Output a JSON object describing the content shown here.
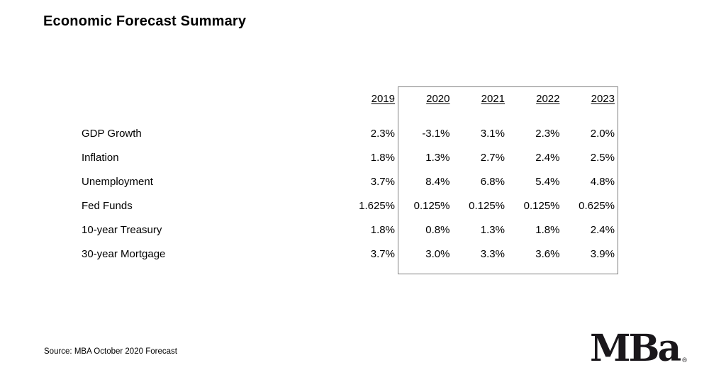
{
  "title": "Economic Forecast Summary",
  "source_note": "Source: MBA October 2020 Forecast",
  "logo": {
    "text": "MBa",
    "registered_mark": "®"
  },
  "colors": {
    "text": "#000000",
    "box_border": "#7f7f7f",
    "logo": "#1a171b"
  },
  "chart_data": {
    "type": "table",
    "title": "Economic Forecast Summary",
    "columns": [
      "2019",
      "2020",
      "2021",
      "2022",
      "2023"
    ],
    "rows": [
      {
        "label": "GDP Growth",
        "values": [
          "2.3%",
          "-3.1%",
          "3.1%",
          "2.3%",
          "2.0%"
        ]
      },
      {
        "label": "Inflation",
        "values": [
          "1.8%",
          "1.3%",
          "2.7%",
          "2.4%",
          "2.5%"
        ]
      },
      {
        "label": "Unemployment",
        "values": [
          "3.7%",
          "8.4%",
          "6.8%",
          "5.4%",
          "4.8%"
        ]
      },
      {
        "label": "Fed Funds",
        "values": [
          "1.625%",
          "0.125%",
          "0.125%",
          "0.125%",
          "0.625%"
        ]
      },
      {
        "label": "10-year Treasury",
        "values": [
          "1.8%",
          "0.8%",
          "1.3%",
          "1.8%",
          "2.4%"
        ]
      },
      {
        "label": "30-year Mortgage",
        "values": [
          "3.7%",
          "3.0%",
          "3.3%",
          "3.6%",
          "3.9%"
        ]
      }
    ],
    "layout_hints": {
      "forecast_years_boxed": [
        "2020",
        "2021",
        "2022",
        "2023"
      ],
      "column_headers_underlined": true,
      "values_alignment": "right"
    }
  }
}
